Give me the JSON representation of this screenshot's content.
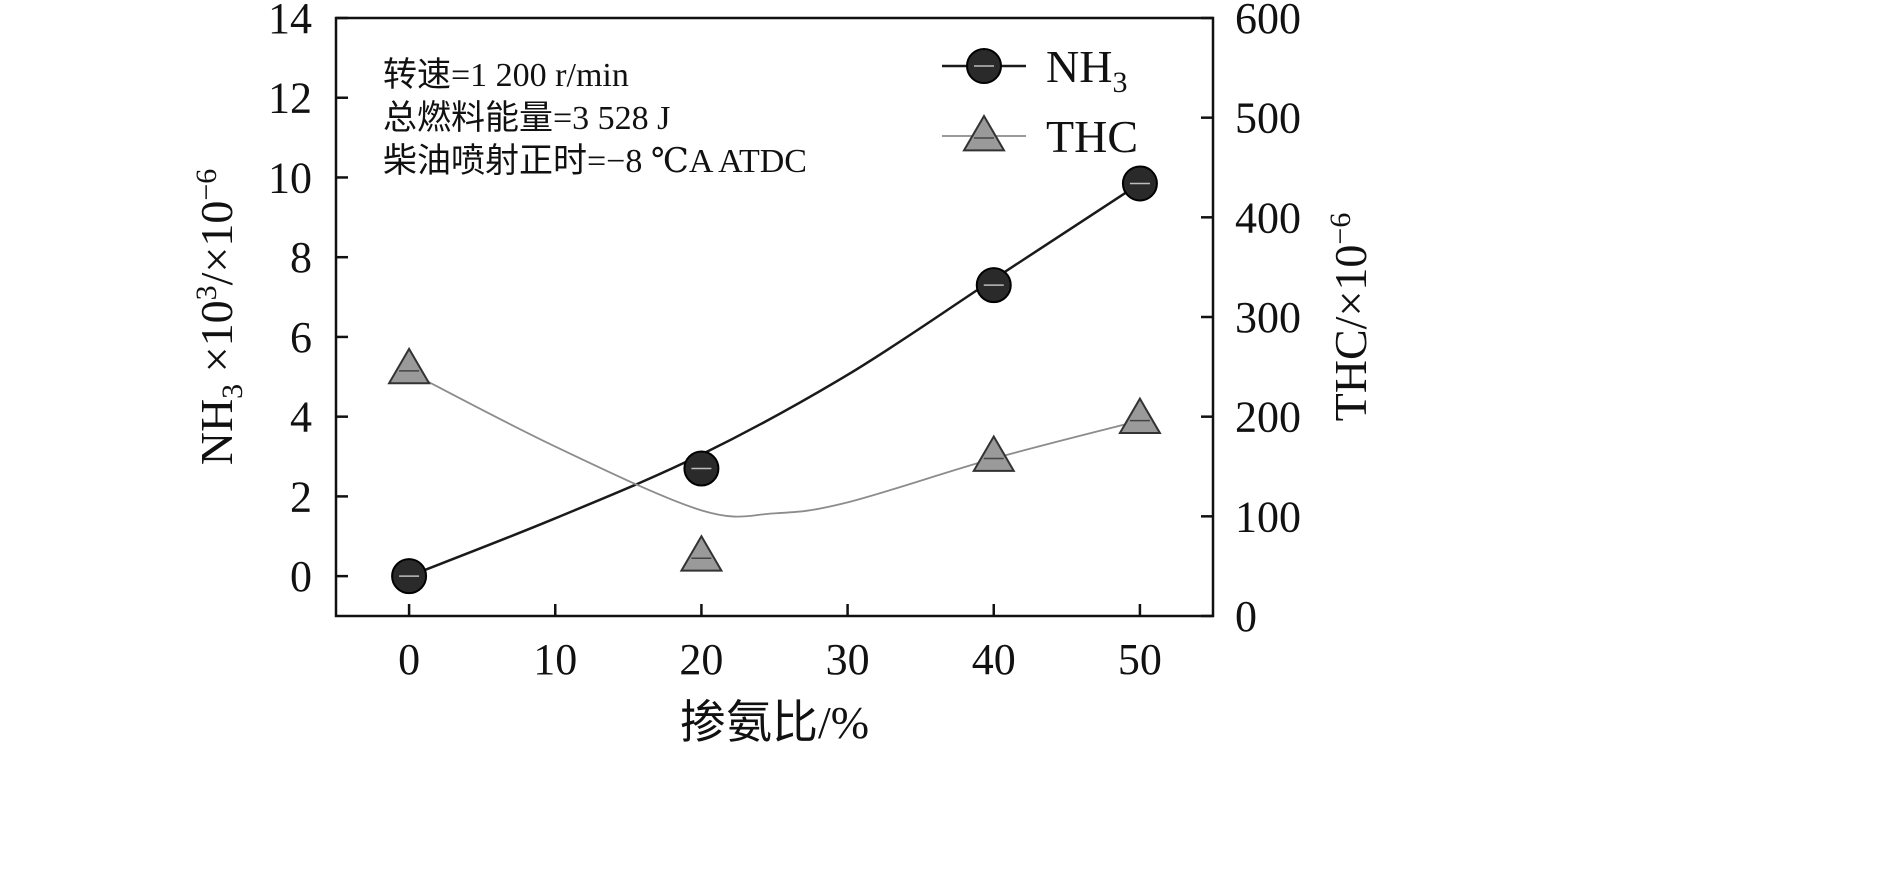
{
  "chart_data": {
    "type": "line",
    "title": "",
    "xlabel": "掺氨比/%",
    "ylabel_left": {
      "base": "NH",
      "sub": "3",
      "mid": " ×10",
      "sup1": "3",
      "tail": "/×10",
      "sup2": "−6"
    },
    "ylabel_right": {
      "base": "THC/×10",
      "sup": "−6"
    },
    "xlim": [
      -5,
      55
    ],
    "ylim_left": [
      -1,
      14
    ],
    "ylim_right": [
      0,
      600
    ],
    "x_ticks": [
      0,
      10,
      20,
      30,
      40,
      50
    ],
    "y_left_ticks": [
      0,
      2,
      4,
      6,
      8,
      10,
      12,
      14
    ],
    "y_right_ticks": [
      0,
      100,
      200,
      300,
      400,
      500,
      600
    ],
    "series": [
      {
        "name": "NH3",
        "legend": {
          "base": "NH",
          "sub": "3"
        },
        "axis": "left",
        "marker": "circle",
        "color": "#1a1a1a",
        "x": [
          0,
          20,
          40,
          50
        ],
        "y": [
          0.0,
          2.7,
          7.3,
          9.85
        ],
        "fit": [
          [
            0,
            0.0
          ],
          [
            10,
            1.45
          ],
          [
            20,
            3.05
          ],
          [
            30,
            5.05
          ],
          [
            40,
            7.45
          ],
          [
            50,
            9.85
          ]
        ]
      },
      {
        "name": "THC",
        "legend": {
          "base": "THC",
          "sub": ""
        },
        "axis": "right",
        "marker": "triangle",
        "color": "#8c8c8c",
        "x": [
          0,
          20,
          40,
          50
        ],
        "y": [
          248,
          60,
          160,
          198
        ],
        "fit": [
          [
            0,
            245
          ],
          [
            10,
            170
          ],
          [
            20,
            106
          ],
          [
            25,
            103
          ],
          [
            30,
            114
          ],
          [
            40,
            158
          ],
          [
            50,
            196
          ]
        ]
      }
    ],
    "annotations": [
      "转速=1 200 r/min",
      "总燃料能量=3 528 J",
      "柴油喷射正时=−8 ℃A ATDC"
    ],
    "legend_position": "top-right"
  }
}
